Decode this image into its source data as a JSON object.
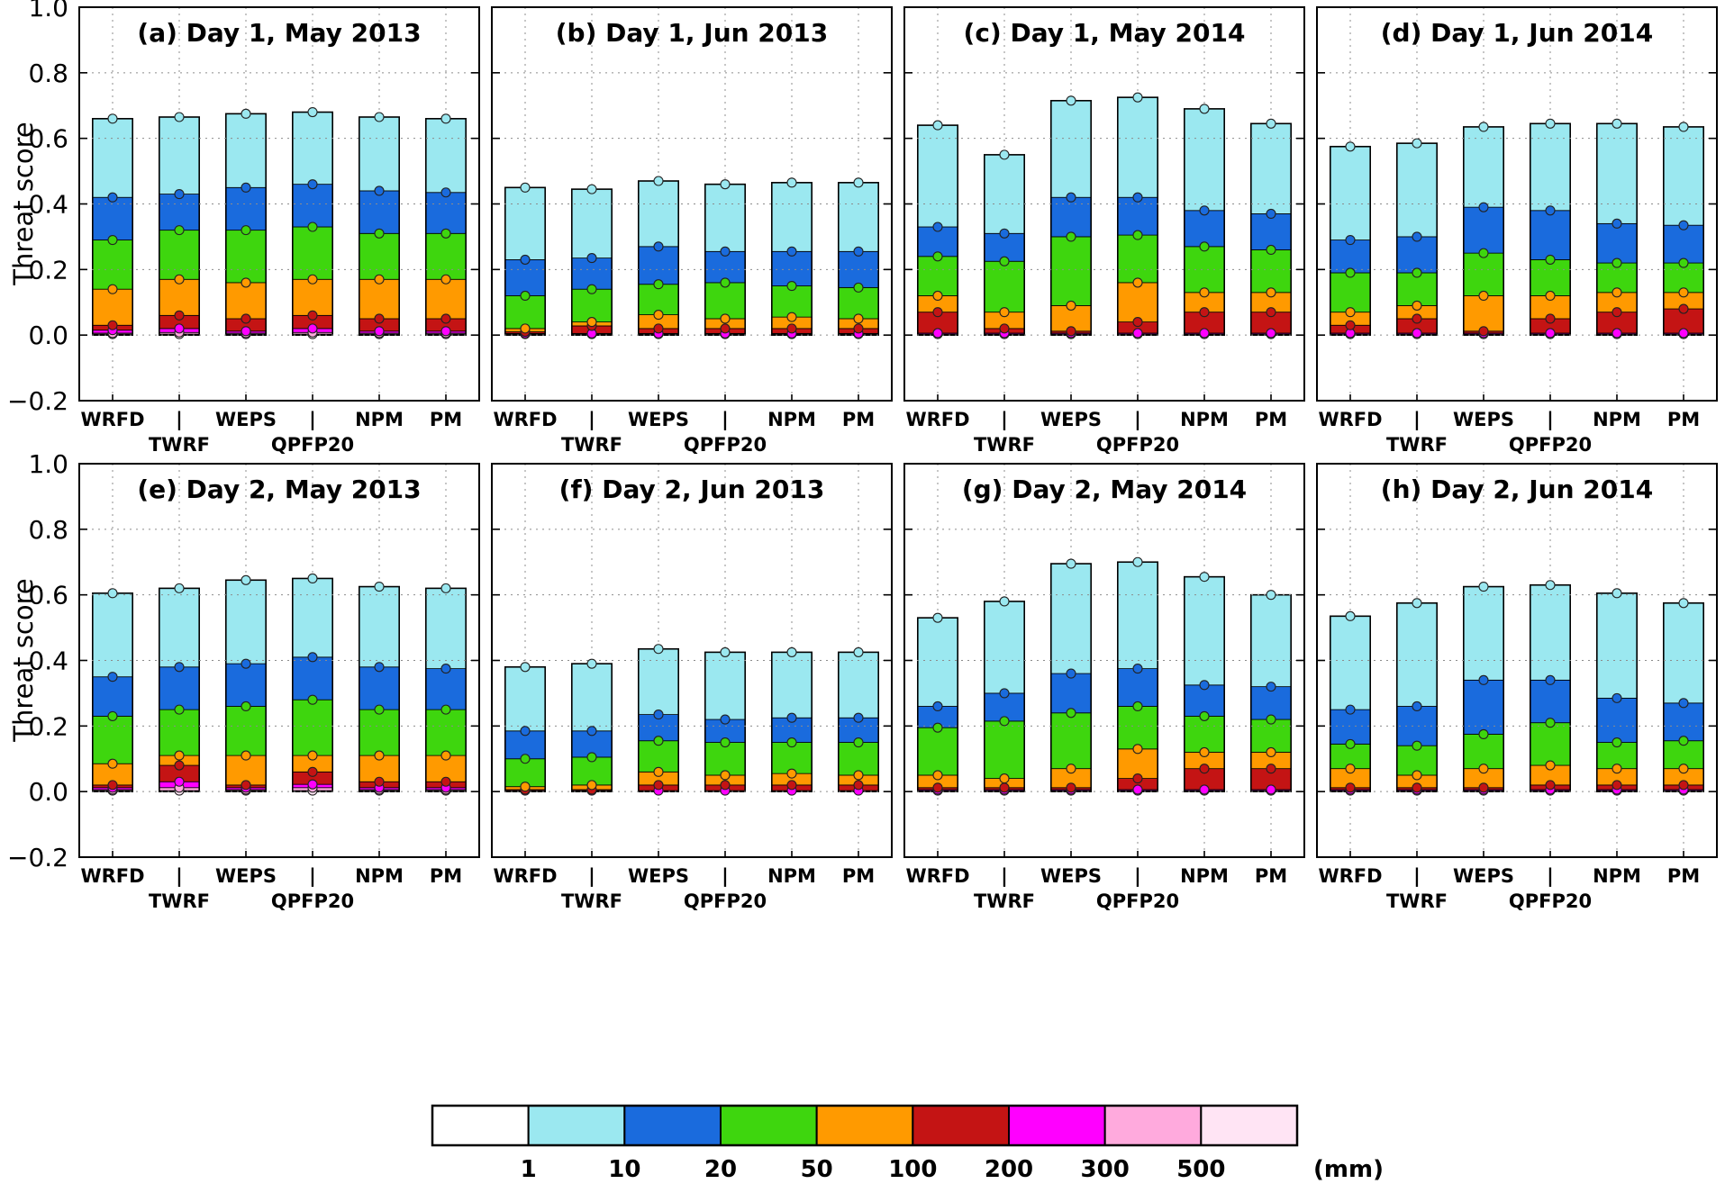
{
  "axes": {
    "ylabel": "Threat score",
    "ylim": [
      -0.2,
      1.0
    ],
    "yticks": [
      1.0,
      0.8,
      0.6,
      0.4,
      0.2,
      0.0,
      -0.2
    ],
    "ytick_labels": [
      "1.0",
      "0.8",
      "0.6",
      "0.4",
      "0.2",
      "0.0",
      "−0.2"
    ],
    "categories": [
      "WRFD",
      "TWRF",
      "WEPS",
      "QPFP20",
      "NPM",
      "PM"
    ],
    "second_line_indices": [
      1,
      3
    ],
    "pipe_label": "|",
    "grid": "dotted"
  },
  "thresholds_mm": [
    1,
    10,
    20,
    50,
    100,
    200,
    300,
    500
  ],
  "threshold_colors": [
    "#9be8f0",
    "#1a6bdd",
    "#3ed60e",
    "#ff9a00",
    "#c41414",
    "#ff00ff",
    "#ffaadd",
    "#ffe4f4"
  ],
  "legend": {
    "segment_colors": [
      "#ffffff",
      "#9be8f0",
      "#1a6bdd",
      "#3ed60e",
      "#ff9a00",
      "#c41414",
      "#ff00ff",
      "#ffaadd",
      "#ffe4f4"
    ],
    "boundary_labels": [
      "1",
      "10",
      "20",
      "50",
      "100",
      "200",
      "300",
      "500"
    ],
    "unit": "(mm)"
  },
  "chart_data": [
    {
      "type": "bar",
      "id": "a",
      "title": "(a) Day 1, May 2013",
      "categories": [
        "WRFD",
        "TWRF",
        "WEPS",
        "QPFP20",
        "NPM",
        "PM"
      ],
      "thresholds_mm": [
        1,
        10,
        20,
        50,
        100,
        200,
        300,
        500
      ],
      "values": [
        [
          0.66,
          0.42,
          0.29,
          0.14,
          0.03,
          0.015,
          0.006,
          0.003
        ],
        [
          0.665,
          0.43,
          0.32,
          0.17,
          0.06,
          0.02,
          0.008,
          0.003
        ],
        [
          0.675,
          0.45,
          0.32,
          0.16,
          0.05,
          0.012,
          0.006,
          0.003
        ],
        [
          0.68,
          0.46,
          0.33,
          0.17,
          0.06,
          0.02,
          0.008,
          0.003
        ],
        [
          0.665,
          0.44,
          0.31,
          0.17,
          0.05,
          0.012,
          0.006,
          0.003
        ],
        [
          0.66,
          0.435,
          0.31,
          0.17,
          0.05,
          0.012,
          0.006,
          0.003
        ]
      ]
    },
    {
      "type": "bar",
      "id": "b",
      "title": "(b) Day 1, Jun 2013",
      "categories": [
        "WRFD",
        "TWRF",
        "WEPS",
        "QPFP20",
        "NPM",
        "PM"
      ],
      "thresholds_mm": [
        1,
        10,
        20,
        50,
        100,
        200,
        300,
        500
      ],
      "values": [
        [
          0.45,
          0.23,
          0.12,
          0.02,
          0.01,
          0.005,
          0.003,
          0
        ],
        [
          0.445,
          0.235,
          0.14,
          0.04,
          0.028,
          0.005,
          0.003,
          0
        ],
        [
          0.47,
          0.27,
          0.155,
          0.062,
          0.02,
          0.005,
          0.003,
          0
        ],
        [
          0.46,
          0.255,
          0.16,
          0.05,
          0.02,
          0.005,
          0.003,
          0
        ],
        [
          0.465,
          0.255,
          0.15,
          0.055,
          0.02,
          0.005,
          0.003,
          0
        ],
        [
          0.465,
          0.255,
          0.145,
          0.05,
          0.02,
          0.005,
          0.003,
          0
        ]
      ]
    },
    {
      "type": "bar",
      "id": "c",
      "title": "(c) Day 1, May 2014",
      "categories": [
        "WRFD",
        "TWRF",
        "WEPS",
        "QPFP20",
        "NPM",
        "PM"
      ],
      "thresholds_mm": [
        1,
        10,
        20,
        50,
        100,
        200,
        300,
        500
      ],
      "values": [
        [
          0.64,
          0.33,
          0.24,
          0.12,
          0.07,
          0.006,
          0.003,
          0
        ],
        [
          0.55,
          0.31,
          0.225,
          0.07,
          0.02,
          0.006,
          0.003,
          0
        ],
        [
          0.715,
          0.42,
          0.3,
          0.09,
          0.012,
          0.006,
          0.003,
          0
        ],
        [
          0.725,
          0.42,
          0.305,
          0.16,
          0.04,
          0.006,
          0.003,
          0
        ],
        [
          0.69,
          0.38,
          0.27,
          0.13,
          0.07,
          0.006,
          0.003,
          0
        ],
        [
          0.645,
          0.37,
          0.26,
          0.13,
          0.07,
          0.006,
          0.003,
          0
        ]
      ]
    },
    {
      "type": "bar",
      "id": "d",
      "title": "(d) Day 1, Jun 2014",
      "categories": [
        "WRFD",
        "TWRF",
        "WEPS",
        "QPFP20",
        "NPM",
        "PM"
      ],
      "thresholds_mm": [
        1,
        10,
        20,
        50,
        100,
        200,
        300,
        500
      ],
      "values": [
        [
          0.575,
          0.29,
          0.19,
          0.07,
          0.03,
          0.006,
          0.003,
          0
        ],
        [
          0.585,
          0.3,
          0.19,
          0.09,
          0.05,
          0.006,
          0.003,
          0
        ],
        [
          0.635,
          0.39,
          0.25,
          0.12,
          0.012,
          0.006,
          0.003,
          0
        ],
        [
          0.645,
          0.38,
          0.23,
          0.12,
          0.05,
          0.006,
          0.003,
          0
        ],
        [
          0.645,
          0.34,
          0.22,
          0.13,
          0.07,
          0.006,
          0.003,
          0
        ],
        [
          0.635,
          0.335,
          0.22,
          0.13,
          0.08,
          0.006,
          0.003,
          0
        ]
      ]
    },
    {
      "type": "bar",
      "id": "e",
      "title": "(e) Day 2, May 2013",
      "categories": [
        "WRFD",
        "TWRF",
        "WEPS",
        "QPFP20",
        "NPM",
        "PM"
      ],
      "thresholds_mm": [
        1,
        10,
        20,
        50,
        100,
        200,
        300,
        500
      ],
      "values": [
        [
          0.605,
          0.35,
          0.23,
          0.085,
          0.02,
          0.012,
          0.006,
          0.003
        ],
        [
          0.62,
          0.38,
          0.25,
          0.11,
          0.08,
          0.03,
          0.012,
          0.003
        ],
        [
          0.645,
          0.39,
          0.26,
          0.11,
          0.02,
          0.012,
          0.006,
          0.003
        ],
        [
          0.65,
          0.41,
          0.28,
          0.11,
          0.06,
          0.022,
          0.012,
          0.003
        ],
        [
          0.625,
          0.38,
          0.25,
          0.11,
          0.03,
          0.012,
          0.006,
          0.003
        ],
        [
          0.62,
          0.375,
          0.25,
          0.11,
          0.03,
          0.012,
          0.006,
          0.003
        ]
      ]
    },
    {
      "type": "bar",
      "id": "f",
      "title": "(f) Day 2, Jun 2013",
      "categories": [
        "WRFD",
        "TWRF",
        "WEPS",
        "QPFP20",
        "NPM",
        "PM"
      ],
      "thresholds_mm": [
        1,
        10,
        20,
        50,
        100,
        200,
        300,
        500
      ],
      "values": [
        [
          0.38,
          0.185,
          0.1,
          0.015,
          0.006,
          0.003,
          0,
          0
        ],
        [
          0.39,
          0.185,
          0.105,
          0.02,
          0.006,
          0.003,
          0,
          0
        ],
        [
          0.435,
          0.235,
          0.155,
          0.06,
          0.02,
          0.003,
          0,
          0
        ],
        [
          0.425,
          0.22,
          0.15,
          0.05,
          0.02,
          0.003,
          0,
          0
        ],
        [
          0.425,
          0.225,
          0.15,
          0.055,
          0.02,
          0.003,
          0,
          0
        ],
        [
          0.425,
          0.225,
          0.15,
          0.05,
          0.02,
          0.003,
          0,
          0
        ]
      ]
    },
    {
      "type": "bar",
      "id": "g",
      "title": "(g) Day 2, May 2014",
      "categories": [
        "WRFD",
        "TWRF",
        "WEPS",
        "QPFP20",
        "NPM",
        "PM"
      ],
      "thresholds_mm": [
        1,
        10,
        20,
        50,
        100,
        200,
        300,
        500
      ],
      "values": [
        [
          0.53,
          0.26,
          0.195,
          0.05,
          0.012,
          0.006,
          0.003,
          0
        ],
        [
          0.58,
          0.3,
          0.215,
          0.04,
          0.012,
          0.006,
          0.003,
          0
        ],
        [
          0.695,
          0.36,
          0.24,
          0.07,
          0.012,
          0.006,
          0.003,
          0
        ],
        [
          0.7,
          0.375,
          0.26,
          0.13,
          0.04,
          0.006,
          0.003,
          0
        ],
        [
          0.655,
          0.325,
          0.23,
          0.12,
          0.07,
          0.006,
          0.003,
          0
        ],
        [
          0.6,
          0.32,
          0.22,
          0.12,
          0.07,
          0.006,
          0.003,
          0
        ]
      ]
    },
    {
      "type": "bar",
      "id": "h",
      "title": "(h) Day 2, Jun 2014",
      "categories": [
        "WRFD",
        "TWRF",
        "WEPS",
        "QPFP20",
        "NPM",
        "PM"
      ],
      "thresholds_mm": [
        1,
        10,
        20,
        50,
        100,
        200,
        300,
        500
      ],
      "values": [
        [
          0.535,
          0.25,
          0.145,
          0.07,
          0.012,
          0.006,
          0.003,
          0
        ],
        [
          0.575,
          0.26,
          0.14,
          0.05,
          0.012,
          0.006,
          0.003,
          0
        ],
        [
          0.625,
          0.34,
          0.175,
          0.07,
          0.012,
          0.006,
          0.003,
          0
        ],
        [
          0.63,
          0.34,
          0.21,
          0.08,
          0.02,
          0.006,
          0.003,
          0
        ],
        [
          0.605,
          0.285,
          0.15,
          0.07,
          0.02,
          0.006,
          0.003,
          0
        ],
        [
          0.575,
          0.27,
          0.155,
          0.07,
          0.02,
          0.006,
          0.003,
          0
        ]
      ]
    }
  ]
}
